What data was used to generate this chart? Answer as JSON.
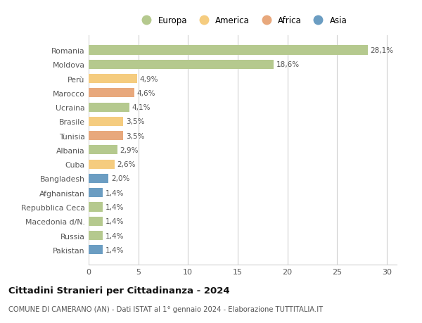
{
  "countries": [
    "Romania",
    "Moldova",
    "Perù",
    "Marocco",
    "Ucraina",
    "Brasile",
    "Tunisia",
    "Albania",
    "Cuba",
    "Bangladesh",
    "Afghanistan",
    "Repubblica Ceca",
    "Macedonia d/N.",
    "Russia",
    "Pakistan"
  ],
  "values": [
    28.1,
    18.6,
    4.9,
    4.6,
    4.1,
    3.5,
    3.5,
    2.9,
    2.6,
    2.0,
    1.4,
    1.4,
    1.4,
    1.4,
    1.4
  ],
  "labels": [
    "28,1%",
    "18,6%",
    "4,9%",
    "4,6%",
    "4,1%",
    "3,5%",
    "3,5%",
    "2,9%",
    "2,6%",
    "2,0%",
    "1,4%",
    "1,4%",
    "1,4%",
    "1,4%",
    "1,4%"
  ],
  "continents": [
    "Europa",
    "Europa",
    "America",
    "Africa",
    "Europa",
    "America",
    "Africa",
    "Europa",
    "America",
    "Asia",
    "Asia",
    "Europa",
    "Europa",
    "Europa",
    "Asia"
  ],
  "continent_colors": {
    "Europa": "#b5c98e",
    "America": "#f5cc7f",
    "Africa": "#e8a87c",
    "Asia": "#6b9dc2"
  },
  "legend_order": [
    "Europa",
    "America",
    "Africa",
    "Asia"
  ],
  "title": "Cittadini Stranieri per Cittadinanza - 2024",
  "subtitle": "COMUNE DI CAMERANO (AN) - Dati ISTAT al 1° gennaio 2024 - Elaborazione TUTTITALIA.IT",
  "xlim": [
    0,
    31
  ],
  "xticks": [
    0,
    5,
    10,
    15,
    20,
    25,
    30
  ],
  "bg_color": "#ffffff",
  "grid_color": "#d0d0d0",
  "bar_height": 0.65
}
